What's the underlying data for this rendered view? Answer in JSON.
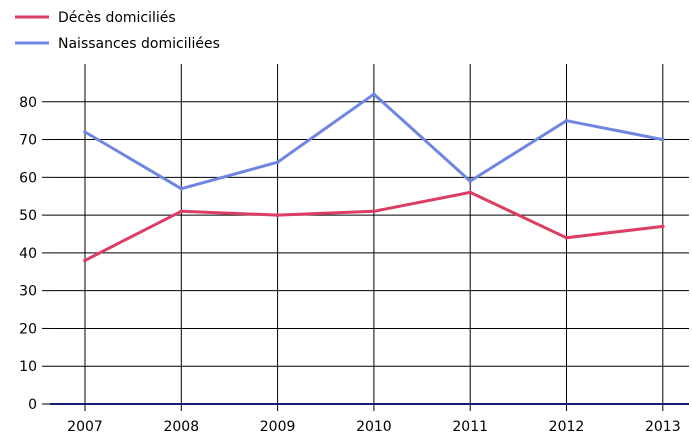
{
  "chart_data": {
    "type": "line",
    "categories": [
      "2007",
      "2008",
      "2009",
      "2010",
      "2011",
      "2012",
      "2013"
    ],
    "series": [
      {
        "name": "Décès domiciliés",
        "color": "#dc3d62",
        "values": [
          38,
          51,
          50,
          51,
          56,
          44,
          47
        ]
      },
      {
        "name": "Naissances domiciliées",
        "color": "#6e86e0",
        "values": [
          72,
          57,
          64,
          82,
          59,
          75,
          70
        ]
      }
    ],
    "yticks": [
      "0",
      "10",
      "20",
      "30",
      "40",
      "50",
      "60",
      "70",
      "80"
    ],
    "ylim": [
      0,
      90
    ],
    "grid": true,
    "legend_position": "top-left"
  }
}
